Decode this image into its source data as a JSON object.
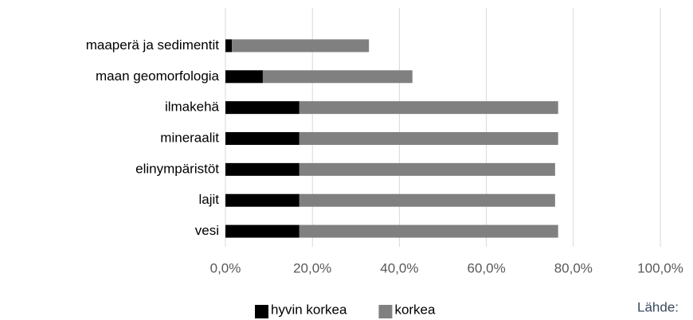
{
  "chart_data": {
    "type": "stacked_barh",
    "categories": [
      "maaperä ja sedimentit",
      "maan geomorfologia",
      "ilmakehä",
      "mineraalit",
      "elinympäristöt",
      "lajit",
      "vesi"
    ],
    "series": [
      {
        "name": "hyvin korkea",
        "color": "#000000",
        "values": [
          1.5,
          8.6,
          17,
          17,
          17,
          17,
          17
        ]
      },
      {
        "name": "korkea",
        "color": "#808080",
        "values": [
          31.5,
          34.4,
          59.5,
          59.5,
          58.8,
          58.8,
          59.5
        ]
      }
    ],
    "xlim": [
      0,
      100
    ],
    "xticks": [
      {
        "value": 0,
        "label": "0,0%"
      },
      {
        "value": 20,
        "label": "20,0%"
      },
      {
        "value": 40,
        "label": "40,0%"
      },
      {
        "value": 60,
        "label": "60,0%"
      },
      {
        "value": 80,
        "label": "80,0%"
      },
      {
        "value": 100,
        "label": "100,0%"
      }
    ],
    "grid": true,
    "legend": "bottom",
    "annotation": "Lähde:"
  }
}
